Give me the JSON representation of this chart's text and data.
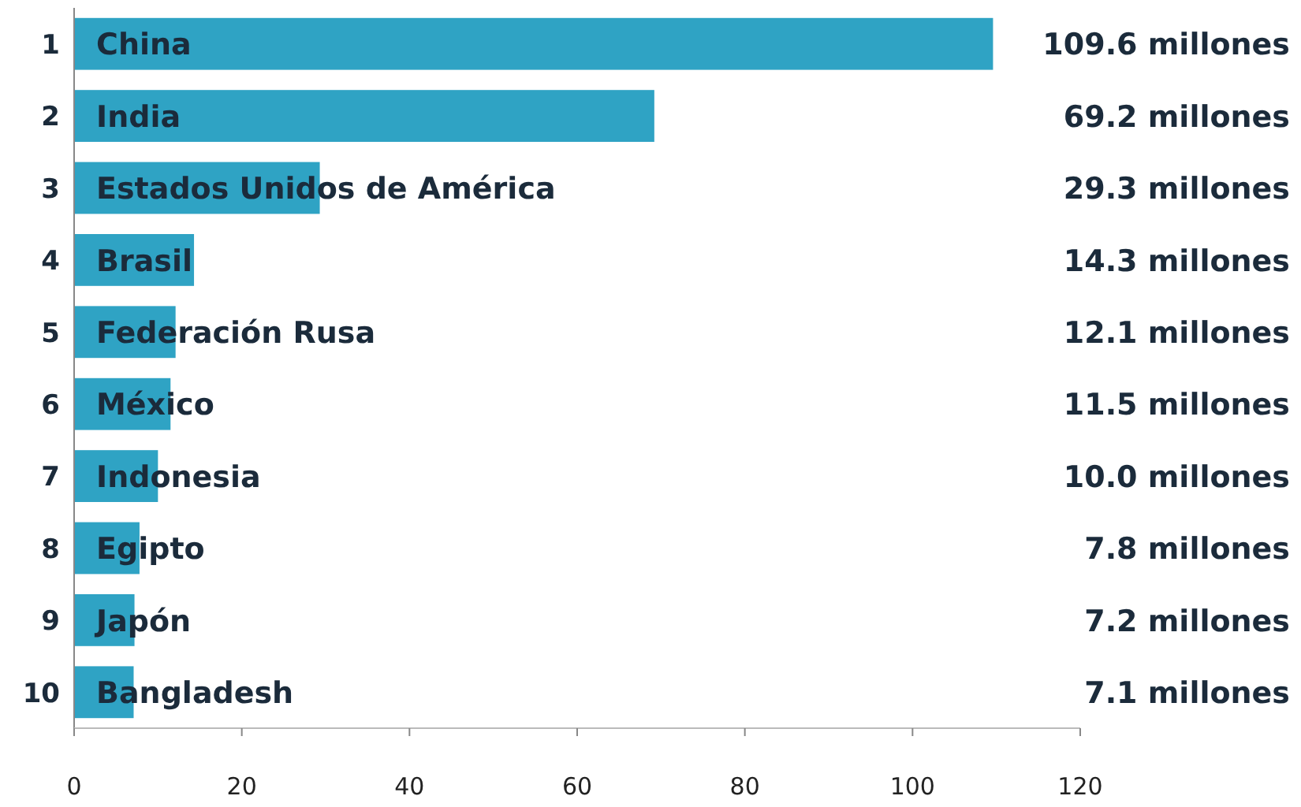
{
  "chart_data": {
    "type": "bar",
    "orientation": "horizontal",
    "categories": [
      "China",
      "India",
      "Estados Unidos de América",
      "Brasil",
      "Federación Rusa",
      "México",
      "Indonesia",
      "Egipto",
      "Japón",
      "Bangladesh"
    ],
    "values": [
      109.6,
      69.2,
      29.3,
      14.3,
      12.1,
      11.5,
      10.0,
      7.8,
      7.2,
      7.1
    ],
    "value_labels": [
      "109.6 millones",
      "69.2 millones",
      "29.3 millones",
      "14.3 millones",
      "12.1 millones",
      "11.5 millones",
      "10.0 millones",
      "7.8 millones",
      "7.2 millones",
      "7.1 millones"
    ],
    "color": "#2fa3c4",
    "xlim": [
      0,
      120
    ],
    "xticks": [
      0,
      20,
      40,
      60,
      80,
      100,
      120
    ],
    "grid": false,
    "annotations": [
      "1",
      "2",
      "3",
      "4",
      "5",
      "6",
      "7",
      "8",
      "9",
      "10"
    ]
  }
}
